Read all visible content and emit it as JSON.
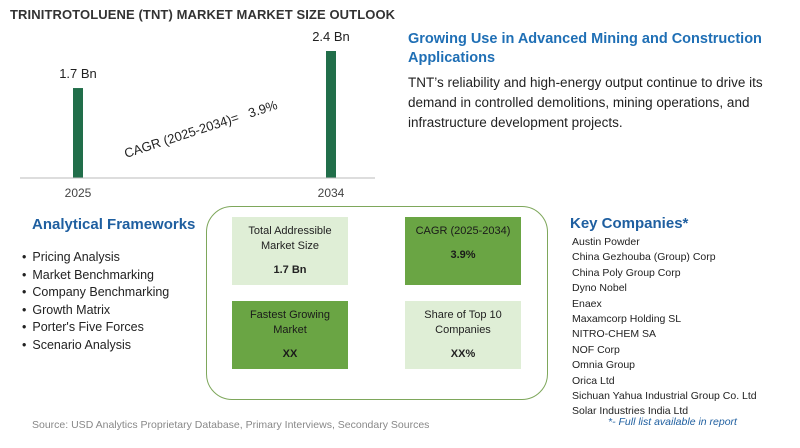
{
  "chart_data": {
    "type": "bar",
    "title": "TRINITROTOLUENE (TNT) MARKET MARKET SIZE OUTLOOK",
    "categories": [
      "2025",
      "2034"
    ],
    "values": [
      1.7,
      2.4
    ],
    "value_labels": [
      "1.7 Bn",
      "2.4 Bn"
    ],
    "annotation": "CAGR (2025-2034)=   3.9%",
    "bar_color": "#216e4a",
    "ylim": [
      0,
      2.4
    ]
  },
  "headline": "Growing Use in Advanced Mining and Construction Applications",
  "description": "TNT’s reliability and high-energy output continue to drive its demand in controlled demolitions, mining operations, and infrastructure development projects.",
  "frameworks": {
    "title": "Analytical Frameworks",
    "items": [
      "Pricing Analysis",
      "Market Benchmarking",
      "Company Benchmarking",
      "Growth Matrix",
      "Porter's Five Forces",
      "Scenario Analysis"
    ]
  },
  "cards": {
    "tam": {
      "label": "Total Addressible Market Size",
      "value": "1.7 Bn"
    },
    "cagr": {
      "label": "CAGR (2025-2034)",
      "value": "3.9%"
    },
    "fastest": {
      "label": "Fastest Growing Market",
      "value": "XX"
    },
    "share": {
      "label": "Share of Top 10 Companies",
      "value": "XX%"
    }
  },
  "companies": {
    "title": "Key Companies*",
    "items": [
      "Austin Powder",
      "China Gezhouba (Group) Corp",
      "China Poly Group Corp",
      "Dyno Nobel",
      "Enaex",
      "Maxamcorp Holding SL",
      "NITRO-CHEM SA",
      "NOF Corp",
      "Omnia Group",
      "Orica Ltd",
      "Sichuan Yahua Industrial Group Co. Ltd",
      "Solar Industries India Ltd"
    ],
    "footnote": "*- Full list available in report"
  },
  "source": "Source: USD Analytics Proprietary Database, Primary Interviews, Secondary Sources",
  "colors": {
    "accent": "#1f6fb5",
    "card_light": "#dfeed6",
    "card_dark": "#6aa544",
    "panel_border": "#7ea75b"
  }
}
